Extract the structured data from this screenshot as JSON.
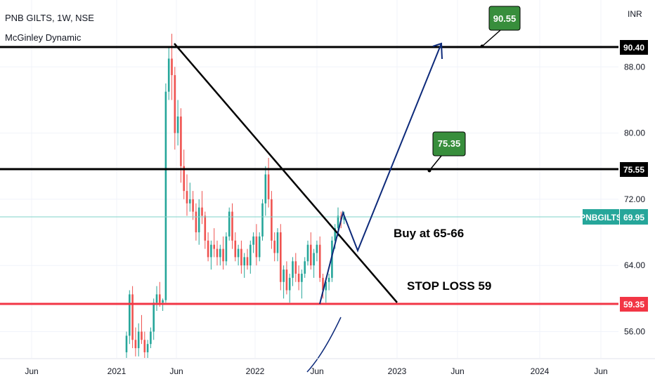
{
  "header": {
    "title": "PNB GILTS, 1W, NSE",
    "indicator": "McGinley Dynamic"
  },
  "currency": "INR",
  "colors": {
    "up": "#26a69a",
    "down": "#ef5350",
    "support": "#f23645",
    "last_price_line": "#7fd3c8",
    "callout_fill": "#388e3c",
    "drawing_blue": "#0d2a7a",
    "trendline": "#000000"
  },
  "annotations": {
    "buy_text": "Buy at 65-66",
    "stoploss_text": "STOP LOSS 59",
    "callout_high": "90.55",
    "callout_mid": "75.35"
  },
  "price_tags": {
    "top": "90.40",
    "mid": "75.55",
    "support": "59.35",
    "ticker": "PNBGILTS",
    "last": "69.95"
  },
  "chart_data": {
    "type": "candlestick",
    "title": "PNB GILTS, 1W, NSE",
    "ylabel": "INR",
    "ylim": [
      52.5,
      97
    ],
    "y_ticks": [
      "88.00",
      "80.00",
      "72.00",
      "64.00",
      "56.00"
    ],
    "x_ticks": [
      "Jun",
      "2021",
      "Jun",
      "2022",
      "Jun",
      "2023",
      "Jun",
      "2024",
      "Jun"
    ],
    "series": [
      {
        "name": "PNBGILTS",
        "values": [
          [
            53.5,
            56,
            52.5,
            55.5
          ],
          [
            55.5,
            61,
            54.5,
            60.5
          ],
          [
            60.5,
            61.5,
            54,
            55
          ],
          [
            55,
            56.5,
            53,
            54
          ],
          [
            54,
            57,
            53,
            56
          ],
          [
            56,
            58,
            54.5,
            55
          ],
          [
            55,
            56,
            52.5,
            53.5
          ],
          [
            53.5,
            55,
            52.8,
            54.5
          ],
          [
            54.5,
            56.5,
            54,
            56
          ],
          [
            56,
            60,
            55,
            59.5
          ],
          [
            59.5,
            61.5,
            58.5,
            60.5
          ],
          [
            60.5,
            62,
            59,
            59.5
          ],
          [
            59.5,
            60,
            58.5,
            59.8
          ],
          [
            59.8,
            86,
            59.5,
            85
          ],
          [
            85,
            90.4,
            84,
            89
          ],
          [
            89,
            92,
            84,
            87
          ],
          [
            87,
            88,
            78,
            80
          ],
          [
            80,
            84,
            78.5,
            82
          ],
          [
            82,
            83,
            74,
            76
          ],
          [
            76,
            78,
            72,
            73
          ],
          [
            73,
            75,
            70,
            71.5
          ],
          [
            71.5,
            74,
            70.5,
            72
          ],
          [
            72,
            73,
            69.5,
            70.5
          ],
          [
            70.5,
            71.5,
            67,
            68
          ],
          [
            68,
            72,
            66.5,
            71
          ],
          [
            71,
            73,
            69,
            70
          ],
          [
            70,
            70.5,
            66,
            67
          ],
          [
            67,
            68,
            64.5,
            65
          ],
          [
            65,
            67,
            63.5,
            66.5
          ],
          [
            66.5,
            68.5,
            65,
            66
          ],
          [
            66,
            67,
            64,
            65
          ],
          [
            65,
            66.5,
            64,
            66
          ],
          [
            66,
            67.5,
            63.5,
            64.5
          ],
          [
            64.5,
            68,
            64,
            67.5
          ],
          [
            67.5,
            71,
            67,
            70.5
          ],
          [
            70.5,
            71.5,
            66,
            67
          ],
          [
            67,
            68,
            64.5,
            65
          ],
          [
            65,
            66.5,
            64,
            66
          ],
          [
            66,
            67,
            63,
            64
          ],
          [
            64,
            65.5,
            62.5,
            65
          ],
          [
            65,
            66,
            63.5,
            64
          ],
          [
            64,
            67,
            63,
            66.5
          ],
          [
            66.5,
            68,
            65.5,
            67.5
          ],
          [
            67.5,
            69,
            64,
            65
          ],
          [
            65,
            68,
            64.5,
            67.5
          ],
          [
            67.5,
            72,
            67,
            71.5
          ],
          [
            71.5,
            76,
            70,
            75
          ],
          [
            75,
            77,
            71,
            72
          ],
          [
            72,
            73,
            66,
            67
          ],
          [
            67,
            68,
            64.5,
            65.5
          ],
          [
            65.5,
            68.5,
            64.5,
            68
          ],
          [
            68,
            69,
            61,
            62
          ],
          [
            62,
            64,
            60,
            63.5
          ],
          [
            63.5,
            64.5,
            60.5,
            61
          ],
          [
            61,
            63,
            59.5,
            62.5
          ],
          [
            62.5,
            65,
            61.5,
            64.5
          ],
          [
            64.5,
            65.5,
            62,
            63
          ],
          [
            63,
            64,
            61,
            62
          ],
          [
            62,
            63.5,
            60,
            63
          ],
          [
            63,
            65,
            62.5,
            64.5
          ],
          [
            64.5,
            67,
            64,
            66.5
          ],
          [
            66.5,
            68,
            63.5,
            64
          ],
          [
            64,
            66,
            62.5,
            65.5
          ],
          [
            65.5,
            67,
            64.5,
            66.5
          ],
          [
            66.5,
            67.5,
            62,
            62.5
          ],
          [
            62.5,
            63,
            60,
            61
          ],
          [
            61,
            62.5,
            59.5,
            62
          ],
          [
            62,
            63,
            61,
            62.5
          ],
          [
            62.5,
            67.5,
            62,
            67
          ],
          [
            67,
            69,
            66,
            68.5
          ],
          [
            68.5,
            71,
            67.5,
            70
          ],
          [
            70,
            70.5,
            68.5,
            69.5
          ],
          [
            69.5,
            70.5,
            69,
            69.95
          ]
        ]
      }
    ],
    "levels": [
      90.4,
      75.55,
      59.35
    ]
  }
}
